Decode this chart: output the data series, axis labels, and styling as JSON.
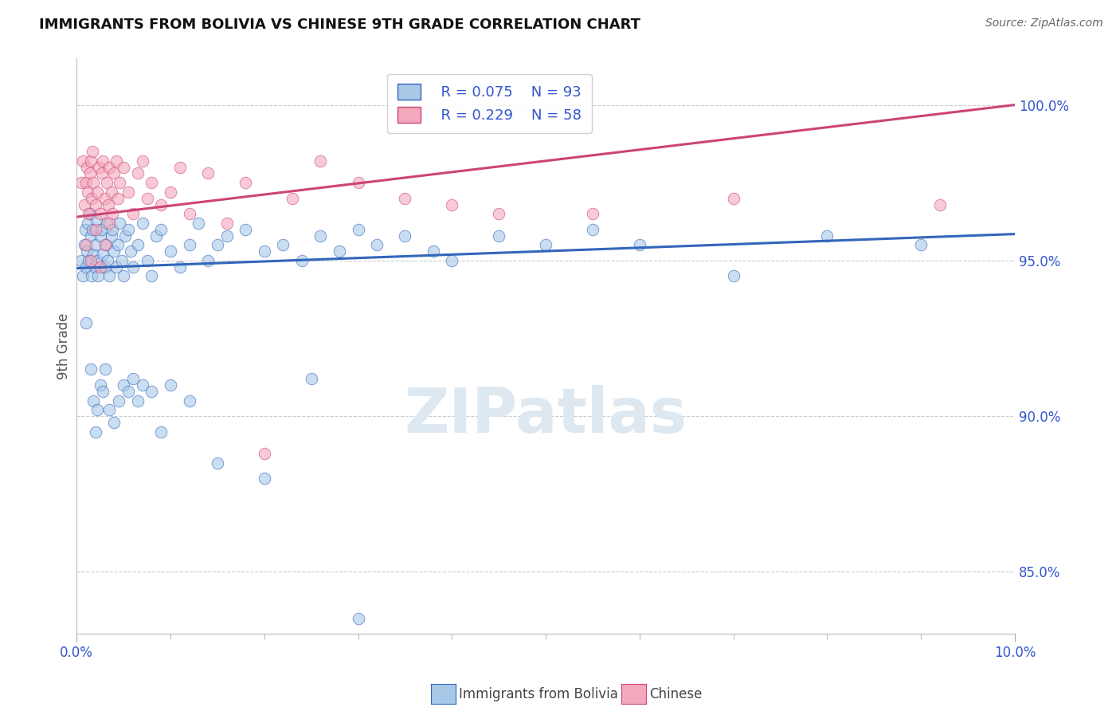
{
  "title": "IMMIGRANTS FROM BOLIVIA VS CHINESE 9TH GRADE CORRELATION CHART",
  "source": "Source: ZipAtlas.com",
  "ylabel": "9th Grade",
  "ylabel_right_ticks": [
    85.0,
    90.0,
    95.0,
    100.0
  ],
  "ylabel_right_labels": [
    "85.0%",
    "90.0%",
    "95.0%",
    "100.0%"
  ],
  "xlim": [
    0.0,
    10.0
  ],
  "ylim": [
    83.0,
    101.5
  ],
  "legend_blue_label": "Immigrants from Bolivia",
  "legend_pink_label": "Chinese",
  "legend_R_blue": "R = 0.075",
  "legend_N_blue": "N = 93",
  "legend_R_pink": "R = 0.229",
  "legend_N_pink": "N = 58",
  "blue_scatter_x": [
    0.05,
    0.07,
    0.08,
    0.09,
    0.1,
    0.11,
    0.12,
    0.13,
    0.14,
    0.15,
    0.16,
    0.17,
    0.18,
    0.19,
    0.2,
    0.21,
    0.22,
    0.23,
    0.25,
    0.26,
    0.28,
    0.3,
    0.31,
    0.32,
    0.33,
    0.35,
    0.37,
    0.38,
    0.4,
    0.42,
    0.44,
    0.46,
    0.48,
    0.5,
    0.52,
    0.55,
    0.58,
    0.6,
    0.65,
    0.7,
    0.75,
    0.8,
    0.85,
    0.9,
    1.0,
    1.1,
    1.2,
    1.3,
    1.4,
    1.5,
    1.6,
    1.8,
    2.0,
    2.2,
    2.4,
    2.6,
    2.8,
    3.0,
    3.2,
    3.5,
    3.8,
    4.0,
    4.5,
    5.0,
    5.5,
    6.0,
    7.0,
    8.0,
    9.0,
    0.1,
    0.15,
    0.18,
    0.2,
    0.22,
    0.25,
    0.28,
    0.3,
    0.35,
    0.4,
    0.45,
    0.5,
    0.55,
    0.6,
    0.65,
    0.7,
    0.8,
    0.9,
    1.0,
    1.2,
    1.5,
    2.0,
    2.5,
    3.0
  ],
  "blue_scatter_y": [
    95.0,
    94.5,
    95.5,
    96.0,
    94.8,
    95.3,
    96.2,
    95.0,
    96.5,
    95.8,
    94.5,
    96.0,
    95.2,
    94.8,
    95.5,
    96.3,
    95.0,
    94.5,
    95.8,
    96.0,
    95.2,
    94.8,
    95.5,
    96.2,
    95.0,
    94.5,
    95.8,
    96.0,
    95.3,
    94.8,
    95.5,
    96.2,
    95.0,
    94.5,
    95.8,
    96.0,
    95.3,
    94.8,
    95.5,
    96.2,
    95.0,
    94.5,
    95.8,
    96.0,
    95.3,
    94.8,
    95.5,
    96.2,
    95.0,
    95.5,
    95.8,
    96.0,
    95.3,
    95.5,
    95.0,
    95.8,
    95.3,
    96.0,
    95.5,
    95.8,
    95.3,
    95.0,
    95.8,
    95.5,
    96.0,
    95.5,
    94.5,
    95.8,
    95.5,
    93.0,
    91.5,
    90.5,
    89.5,
    90.2,
    91.0,
    90.8,
    91.5,
    90.2,
    89.8,
    90.5,
    91.0,
    90.8,
    91.2,
    90.5,
    91.0,
    90.8,
    89.5,
    91.0,
    90.5,
    88.5,
    88.0,
    91.2,
    83.5
  ],
  "pink_scatter_x": [
    0.05,
    0.07,
    0.08,
    0.1,
    0.11,
    0.12,
    0.13,
    0.14,
    0.15,
    0.16,
    0.17,
    0.18,
    0.2,
    0.22,
    0.24,
    0.25,
    0.27,
    0.28,
    0.3,
    0.32,
    0.34,
    0.35,
    0.37,
    0.38,
    0.4,
    0.42,
    0.44,
    0.46,
    0.5,
    0.55,
    0.6,
    0.65,
    0.7,
    0.75,
    0.8,
    0.9,
    1.0,
    1.1,
    1.2,
    1.4,
    1.6,
    1.8,
    2.0,
    2.3,
    2.6,
    3.0,
    3.5,
    4.0,
    4.5,
    5.5,
    7.0,
    9.2,
    0.1,
    0.15,
    0.2,
    0.25,
    0.3,
    0.35
  ],
  "pink_scatter_y": [
    97.5,
    98.2,
    96.8,
    97.5,
    98.0,
    97.2,
    96.5,
    97.8,
    98.2,
    97.0,
    98.5,
    97.5,
    96.8,
    97.2,
    98.0,
    96.5,
    97.8,
    98.2,
    97.0,
    97.5,
    96.8,
    98.0,
    97.2,
    96.5,
    97.8,
    98.2,
    97.0,
    97.5,
    98.0,
    97.2,
    96.5,
    97.8,
    98.2,
    97.0,
    97.5,
    96.8,
    97.2,
    98.0,
    96.5,
    97.8,
    96.2,
    97.5,
    88.8,
    97.0,
    98.2,
    97.5,
    97.0,
    96.8,
    96.5,
    96.5,
    97.0,
    96.8,
    95.5,
    95.0,
    96.0,
    94.8,
    95.5,
    96.2
  ],
  "blue_line_x": [
    0.0,
    10.0
  ],
  "blue_line_y": [
    94.75,
    95.85
  ],
  "pink_line_x": [
    0.0,
    10.0
  ],
  "pink_line_y": [
    96.4,
    100.0
  ],
  "blue_color": "#a8c8e8",
  "pink_color": "#f4a8bc",
  "blue_line_color": "#3366bb",
  "pink_line_color": "#cc4477",
  "grid_color": "#cccccc",
  "title_color": "#111111",
  "watermark_color": "#dde8f0",
  "watermark_text": "ZIPatlas",
  "legend_text_color": "#3355cc",
  "bottom_legend_color": "#444444",
  "background_color": "#ffffff"
}
